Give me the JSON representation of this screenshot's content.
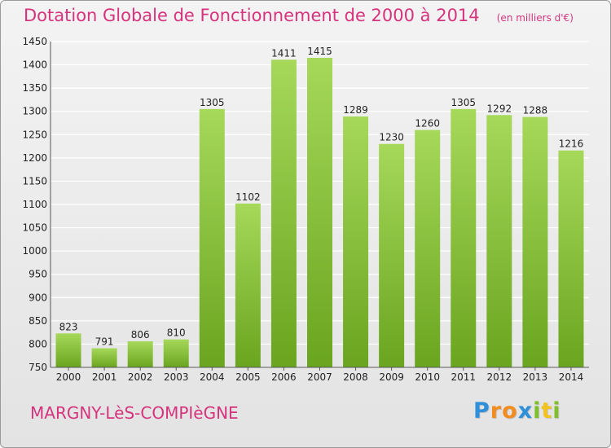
{
  "header": {
    "title": "Dotation Globale de Fonctionnement de 2000 à 2014",
    "subtitle": "(en milliers d'€)"
  },
  "footer": {
    "commune": "MARGNY-LèS-COMPIèGNE",
    "logo_letters": [
      {
        "char": "P",
        "color": "#2f8fd8"
      },
      {
        "char": "r",
        "color": "#f28c1e"
      },
      {
        "char": "o",
        "color": "#f28c1e"
      },
      {
        "char": "x",
        "color": "#2f8fd8"
      },
      {
        "char": "i",
        "color": "#7fbf2a"
      },
      {
        "char": "t",
        "color": "#f2c21e"
      },
      {
        "char": "i",
        "color": "#7fbf2a"
      }
    ]
  },
  "colors": {
    "bar_light": "#a6d85a",
    "bar_dark": "#6aa51f",
    "title": "#d6337d",
    "grid": "#ffffff",
    "axis_text": "#222222"
  },
  "chart_data": {
    "type": "bar",
    "categories": [
      "2000",
      "2001",
      "2002",
      "2003",
      "2004",
      "2005",
      "2006",
      "2007",
      "2008",
      "2009",
      "2010",
      "2011",
      "2012",
      "2013",
      "2014"
    ],
    "values": [
      823,
      791,
      806,
      810,
      1305,
      1102,
      1411,
      1415,
      1289,
      1230,
      1260,
      1305,
      1292,
      1288,
      1216
    ],
    "title": "Dotation Globale de Fonctionnement de 2000 à 2014",
    "subtitle": "(en milliers d'€)",
    "xlabel": "",
    "ylabel": "",
    "ylim": [
      750,
      1450
    ],
    "ytick_step": 50,
    "grid": true,
    "legend": "none"
  }
}
